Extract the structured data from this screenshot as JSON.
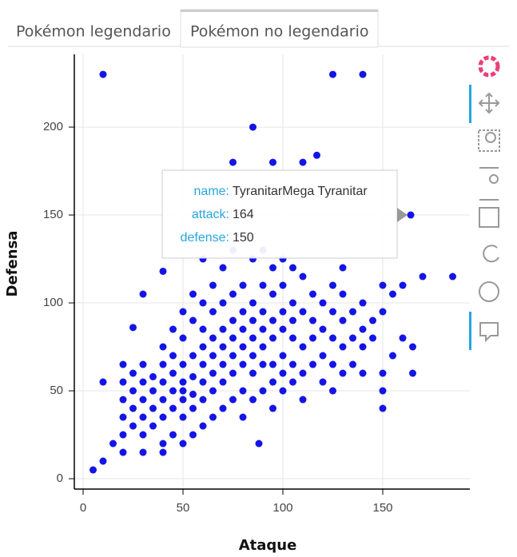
{
  "tabs": [
    "Pokémon legendario",
    "Pokémon no legendario"
  ],
  "active_tab": 1,
  "chart_data": {
    "type": "scatter",
    "x_label": "Ataque",
    "y_label": "Defensa",
    "color": "#1414e6",
    "grid": true,
    "xlim": [
      -4.4,
      193.6
    ],
    "ylim": [
      -5.9,
      241.4
    ],
    "xticks": [
      0,
      50,
      100,
      150
    ],
    "yticks": [
      0,
      50,
      100,
      150,
      200
    ],
    "x": [
      10,
      125,
      140,
      85,
      75,
      95,
      110,
      117,
      164,
      185,
      170,
      5,
      10,
      15,
      20,
      30,
      40,
      10,
      88,
      30,
      25,
      40,
      155,
      160,
      165,
      165,
      160,
      150,
      150,
      155,
      20,
      20,
      20,
      20,
      20,
      25,
      25,
      25,
      25,
      30,
      30,
      30,
      30,
      30,
      35,
      35,
      35,
      35,
      40,
      40,
      40,
      40,
      40,
      40,
      45,
      45,
      45,
      45,
      45,
      45,
      50,
      50,
      50,
      50,
      50,
      50,
      50,
      50,
      55,
      55,
      55,
      55,
      55,
      55,
      55,
      60,
      60,
      60,
      60,
      60,
      60,
      60,
      60,
      65,
      65,
      65,
      65,
      65,
      65,
      65,
      70,
      70,
      70,
      70,
      70,
      70,
      70,
      75,
      75,
      75,
      75,
      75,
      75,
      75,
      80,
      80,
      80,
      80,
      80,
      80,
      80,
      85,
      85,
      85,
      85,
      85,
      85,
      85,
      90,
      90,
      90,
      90,
      90,
      90,
      90,
      95,
      95,
      95,
      95,
      95,
      95,
      95,
      100,
      100,
      100,
      100,
      100,
      100,
      100,
      105,
      105,
      105,
      105,
      105,
      105,
      110,
      110,
      110,
      110,
      110,
      115,
      115,
      115,
      115,
      120,
      120,
      120,
      120,
      125,
      125,
      125,
      125,
      125,
      130,
      130,
      130,
      130,
      130,
      135,
      135,
      135,
      140,
      140,
      140,
      140,
      145,
      145,
      150,
      150,
      150
    ],
    "values": [
      230,
      230,
      230,
      200,
      180,
      180,
      180,
      184,
      150,
      115,
      115,
      5,
      10,
      20,
      15,
      15,
      15,
      55,
      20,
      105,
      86,
      118,
      105,
      110,
      60,
      75,
      80,
      40,
      50,
      70,
      25,
      35,
      45,
      55,
      65,
      30,
      40,
      50,
      60,
      25,
      35,
      45,
      55,
      65,
      30,
      40,
      50,
      58,
      20,
      35,
      45,
      55,
      65,
      75,
      25,
      40,
      50,
      60,
      70,
      85,
      20,
      35,
      45,
      50,
      55,
      65,
      80,
      95,
      25,
      40,
      48,
      58,
      70,
      90,
      105,
      30,
      45,
      55,
      65,
      75,
      85,
      100,
      125,
      35,
      50,
      60,
      70,
      80,
      95,
      110,
      40,
      55,
      65,
      75,
      85,
      100,
      120,
      45,
      60,
      70,
      80,
      90,
      105,
      130,
      35,
      50,
      65,
      75,
      85,
      95,
      110,
      45,
      60,
      70,
      80,
      90,
      100,
      125,
      50,
      65,
      75,
      85,
      95,
      110,
      130,
      40,
      55,
      65,
      80,
      90,
      105,
      120,
      50,
      60,
      70,
      85,
      95,
      110,
      125,
      55,
      65,
      80,
      90,
      100,
      120,
      45,
      60,
      75,
      95,
      115,
      65,
      80,
      90,
      105,
      55,
      70,
      85,
      100,
      50,
      65,
      80,
      95,
      110,
      60,
      75,
      90,
      105,
      120,
      65,
      80,
      95,
      60,
      75,
      85,
      100,
      80,
      90,
      60,
      110,
      95
    ],
    "tooltip": {
      "fields": [
        {
          "label": "name:",
          "value": "TyranitarMega Tyranitar"
        },
        {
          "label": "attack:",
          "value": 164
        },
        {
          "label": "defense:",
          "value": 150
        }
      ]
    }
  }
}
